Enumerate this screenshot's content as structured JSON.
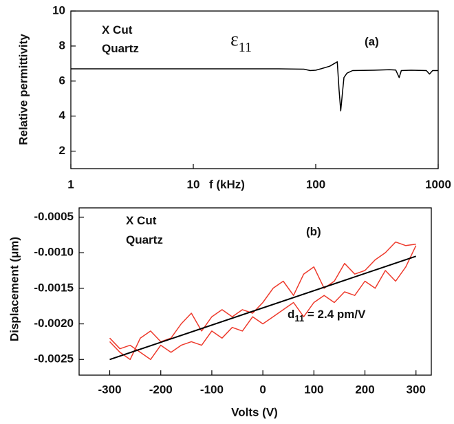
{
  "chart_data": [
    {
      "type": "line",
      "xlog": true,
      "ylabel": "Relative permittivity",
      "xlabel": "f (kHz)",
      "xlim": [
        1,
        1000
      ],
      "xticks": [
        1,
        10,
        100,
        1000
      ],
      "ylim": [
        1,
        10
      ],
      "yticks": [
        2,
        4,
        6,
        8,
        10
      ],
      "annotations": [
        {
          "text": "X  Cut"
        },
        {
          "text": "Quartz"
        },
        {
          "text": "ε",
          "sub": "11"
        },
        {
          "text": "(a)"
        }
      ],
      "x": [
        1,
        2,
        5,
        10,
        20,
        50,
        80,
        90,
        100,
        110,
        130,
        150,
        155,
        160,
        170,
        180,
        200,
        300,
        400,
        450,
        480,
        500,
        600,
        800,
        850,
        900,
        1000
      ],
      "series": [
        {
          "color": "#000000",
          "values": [
            6.7,
            6.7,
            6.7,
            6.7,
            6.7,
            6.7,
            6.68,
            6.6,
            6.62,
            6.7,
            6.85,
            7.1,
            5.5,
            4.3,
            6.2,
            6.45,
            6.6,
            6.62,
            6.65,
            6.63,
            6.2,
            6.6,
            6.62,
            6.6,
            6.4,
            6.6,
            6.6
          ]
        }
      ]
    },
    {
      "type": "line",
      "xlog": false,
      "ylabel": "Displacement (μm)",
      "xlabel": "Volts (V)",
      "xlim": [
        -360,
        330
      ],
      "xticks": [
        -300,
        -200,
        -100,
        0,
        100,
        200,
        300
      ],
      "ylim": [
        -0.00272,
        -0.00037
      ],
      "yticks": [
        -0.0005,
        {
          "value": -0.001,
          "label": "-0.0010"
        },
        -0.0015,
        {
          "value": -0.002,
          "label": "-0.0020"
        },
        -0.0025
      ],
      "annotations": [
        {
          "text": "X  Cut"
        },
        {
          "text": "Quartz"
        },
        {
          "text": "(b)"
        },
        {
          "text": "d",
          "sub": "11",
          "rest": " = 2.4 pm/V"
        }
      ],
      "x": [
        -300,
        -280,
        -260,
        -240,
        -220,
        -200,
        -180,
        -160,
        -140,
        -120,
        -100,
        -80,
        -60,
        -40,
        -20,
        0,
        20,
        40,
        60,
        80,
        100,
        120,
        140,
        160,
        180,
        200,
        220,
        240,
        260,
        280,
        300
      ],
      "series": [
        {
          "color": "#ee3a2c",
          "values": [
            -0.00225,
            -0.0024,
            -0.0025,
            -0.0022,
            -0.0021,
            -0.00225,
            -0.0022,
            -0.002,
            -0.00185,
            -0.0021,
            -0.0019,
            -0.0018,
            -0.0019,
            -0.0018,
            -0.00185,
            -0.0017,
            -0.0015,
            -0.0014,
            -0.0016,
            -0.0013,
            -0.0012,
            -0.0015,
            -0.0014,
            -0.00115,
            -0.0013,
            -0.00125,
            -0.0011,
            -0.001,
            -0.00085,
            -0.0009,
            -0.00088
          ]
        },
        {
          "color": "#ee3a2c",
          "values": [
            -0.0022,
            -0.00235,
            -0.0023,
            -0.0024,
            -0.0025,
            -0.0023,
            -0.0024,
            -0.0023,
            -0.00225,
            -0.0023,
            -0.0021,
            -0.0022,
            -0.00205,
            -0.0021,
            -0.0019,
            -0.002,
            -0.0019,
            -0.0018,
            -0.0017,
            -0.0019,
            -0.0017,
            -0.0016,
            -0.0017,
            -0.00155,
            -0.0016,
            -0.0014,
            -0.0015,
            -0.00125,
            -0.0014,
            -0.0012,
            -0.0009
          ]
        }
      ],
      "fit": {
        "color": "#000000",
        "x": [
          -300,
          300
        ],
        "values": [
          -0.0025,
          -0.00105
        ]
      }
    }
  ]
}
